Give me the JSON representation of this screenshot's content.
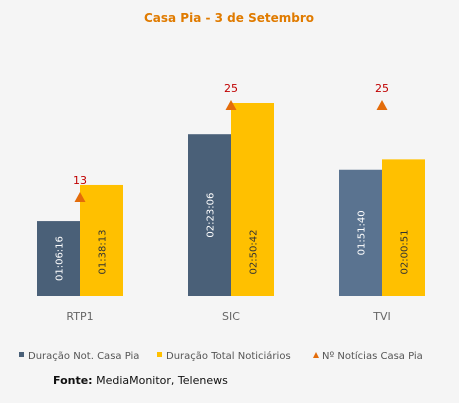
{
  "chart_data": {
    "type": "bar",
    "title": "Casa Pia - 3 de Setembro",
    "categories": [
      "RTP1",
      "SIC",
      "TVI"
    ],
    "series": [
      {
        "name": "Duração Not. Casa Pia",
        "color": "#4a6078",
        "color_alt": "#5a7390",
        "values": [
          "01:06:16",
          "02:23:06",
          "01:51:40"
        ],
        "values_seconds": [
          3976,
          8586,
          6700
        ]
      },
      {
        "name": "Duração Total Noticiários",
        "color": "#ffc000",
        "values": [
          "01:38:13",
          "02:50:42",
          "02:00:51"
        ],
        "values_seconds": [
          5893,
          10242,
          7251
        ]
      },
      {
        "name": "Nº Notícias Casa Pia",
        "color": "#e36c0a",
        "marker": "triangle",
        "values": [
          13,
          25,
          25
        ],
        "value_color": "#c00000"
      }
    ],
    "legend_position": "bottom",
    "grid": false
  },
  "source": {
    "label": "Fonte:",
    "text": "MediaMonitor, Telenews"
  }
}
